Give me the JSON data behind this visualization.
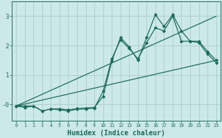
{
  "xlabel": "Humidex (Indice chaleur)",
  "bg_color": "#cce8e8",
  "grid_color": "#aacccc",
  "line_color": "#1a6b5a",
  "xlim": [
    -0.5,
    23.5
  ],
  "ylim": [
    -0.55,
    3.5
  ],
  "yticks": [
    0,
    1,
    2,
    3
  ],
  "ytick_labels": [
    "-0",
    "1",
    "2",
    "3"
  ],
  "xticks": [
    0,
    1,
    2,
    3,
    4,
    5,
    6,
    7,
    8,
    9,
    10,
    11,
    12,
    13,
    14,
    15,
    16,
    17,
    18,
    19,
    20,
    21,
    22,
    23
  ],
  "line1_x": [
    0,
    1,
    2,
    3,
    4,
    5,
    6,
    7,
    8,
    9,
    10,
    11,
    12,
    13,
    14,
    15,
    16,
    17,
    18,
    19,
    20,
    21,
    22,
    23
  ],
  "line1_y": [
    -0.05,
    -0.1,
    -0.05,
    -0.22,
    -0.15,
    -0.18,
    -0.22,
    -0.16,
    -0.15,
    -0.12,
    0.45,
    1.55,
    2.2,
    1.9,
    1.55,
    2.1,
    2.6,
    2.5,
    3.0,
    2.15,
    2.15,
    2.15,
    1.8,
    1.5
  ],
  "line2_x": [
    0,
    1,
    2,
    3,
    4,
    5,
    6,
    7,
    8,
    9,
    10,
    11,
    12,
    13,
    14,
    15,
    16,
    17,
    18,
    19,
    20,
    21,
    22,
    23
  ],
  "line2_y": [
    -0.05,
    -0.05,
    -0.05,
    -0.22,
    -0.15,
    -0.15,
    -0.18,
    -0.14,
    -0.12,
    -0.1,
    0.28,
    1.48,
    2.28,
    1.95,
    1.5,
    2.28,
    3.05,
    2.65,
    3.05,
    2.5,
    2.15,
    2.1,
    1.72,
    1.42
  ],
  "line3_x": [
    0,
    23
  ],
  "line3_y": [
    -0.05,
    3.0
  ],
  "line4_x": [
    0,
    23
  ],
  "line4_y": [
    -0.05,
    1.5
  ]
}
